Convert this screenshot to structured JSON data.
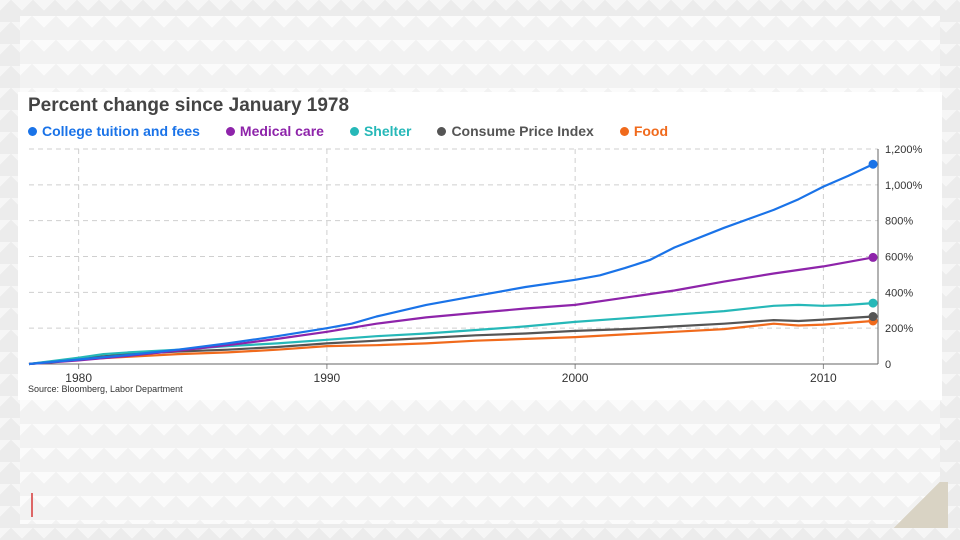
{
  "colors": {
    "college": "#1a73e8",
    "medical": "#8e24aa",
    "shelter": "#26b8b8",
    "cpi": "#555555",
    "food": "#f06a1c"
  },
  "chart_data": {
    "type": "line",
    "title": "Percent change since January 1978",
    "source": "Source: Bloomberg, Labor Department",
    "xlabel": "",
    "ylabel": "",
    "xlim": [
      1978,
      2012.2
    ],
    "ylim": [
      0,
      1200
    ],
    "x_ticks": [
      1980,
      1990,
      2000,
      2010
    ],
    "x_tick_labels": [
      "1980",
      "1990",
      "2000",
      "2010"
    ],
    "y_ticks": [
      0,
      200,
      400,
      600,
      800,
      1000,
      1200
    ],
    "y_tick_labels": [
      "0",
      "200%",
      "400%",
      "600%",
      "800%",
      "1,000%",
      "1,200%"
    ],
    "grid": true,
    "legend_position": "top",
    "series": [
      {
        "name": "College tuition and fees",
        "color_key": "college",
        "x": [
          1978,
          1980,
          1982,
          1984,
          1986,
          1988,
          1990,
          1991,
          1992,
          1994,
          1996,
          1998,
          2000,
          2001,
          2002,
          2003,
          2004,
          2006,
          2008,
          2009,
          2010,
          2011,
          2012
        ],
        "y": [
          0,
          25,
          50,
          80,
          115,
          155,
          200,
          225,
          265,
          330,
          380,
          430,
          470,
          495,
          535,
          580,
          650,
          760,
          860,
          920,
          990,
          1050,
          1115
        ]
      },
      {
        "name": "Medical care",
        "color_key": "medical",
        "x": [
          1978,
          1980,
          1982,
          1984,
          1986,
          1988,
          1990,
          1992,
          1994,
          1996,
          1998,
          2000,
          2002,
          2004,
          2006,
          2008,
          2010,
          2012
        ],
        "y": [
          0,
          20,
          45,
          75,
          105,
          140,
          180,
          225,
          260,
          285,
          310,
          330,
          370,
          410,
          460,
          505,
          545,
          595
        ]
      },
      {
        "name": "Shelter",
        "color_key": "shelter",
        "x": [
          1978,
          1980,
          1981,
          1982,
          1984,
          1986,
          1988,
          1990,
          1992,
          1994,
          1996,
          1998,
          2000,
          2002,
          2004,
          2006,
          2008,
          2009,
          2010,
          2011,
          2012
        ],
        "y": [
          0,
          35,
          55,
          65,
          80,
          100,
          115,
          135,
          155,
          170,
          190,
          210,
          235,
          255,
          275,
          295,
          325,
          330,
          325,
          330,
          340
        ]
      },
      {
        "name": "Consume Price Index",
        "color_key": "cpi",
        "x": [
          1978,
          1980,
          1982,
          1984,
          1986,
          1988,
          1990,
          1992,
          1994,
          1996,
          1998,
          2000,
          2002,
          2004,
          2006,
          2008,
          2009,
          2010,
          2012
        ],
        "y": [
          0,
          30,
          55,
          70,
          80,
          95,
          115,
          130,
          145,
          160,
          170,
          185,
          195,
          210,
          225,
          245,
          240,
          248,
          265
        ]
      },
      {
        "name": "Food",
        "color_key": "food",
        "x": [
          1978,
          1980,
          1982,
          1984,
          1986,
          1988,
          1990,
          1992,
          1994,
          1996,
          1998,
          2000,
          2002,
          2004,
          2006,
          2008,
          2009,
          2010,
          2012
        ],
        "y": [
          0,
          25,
          40,
          55,
          65,
          80,
          100,
          105,
          115,
          130,
          140,
          150,
          165,
          180,
          195,
          225,
          215,
          220,
          240
        ]
      }
    ]
  }
}
